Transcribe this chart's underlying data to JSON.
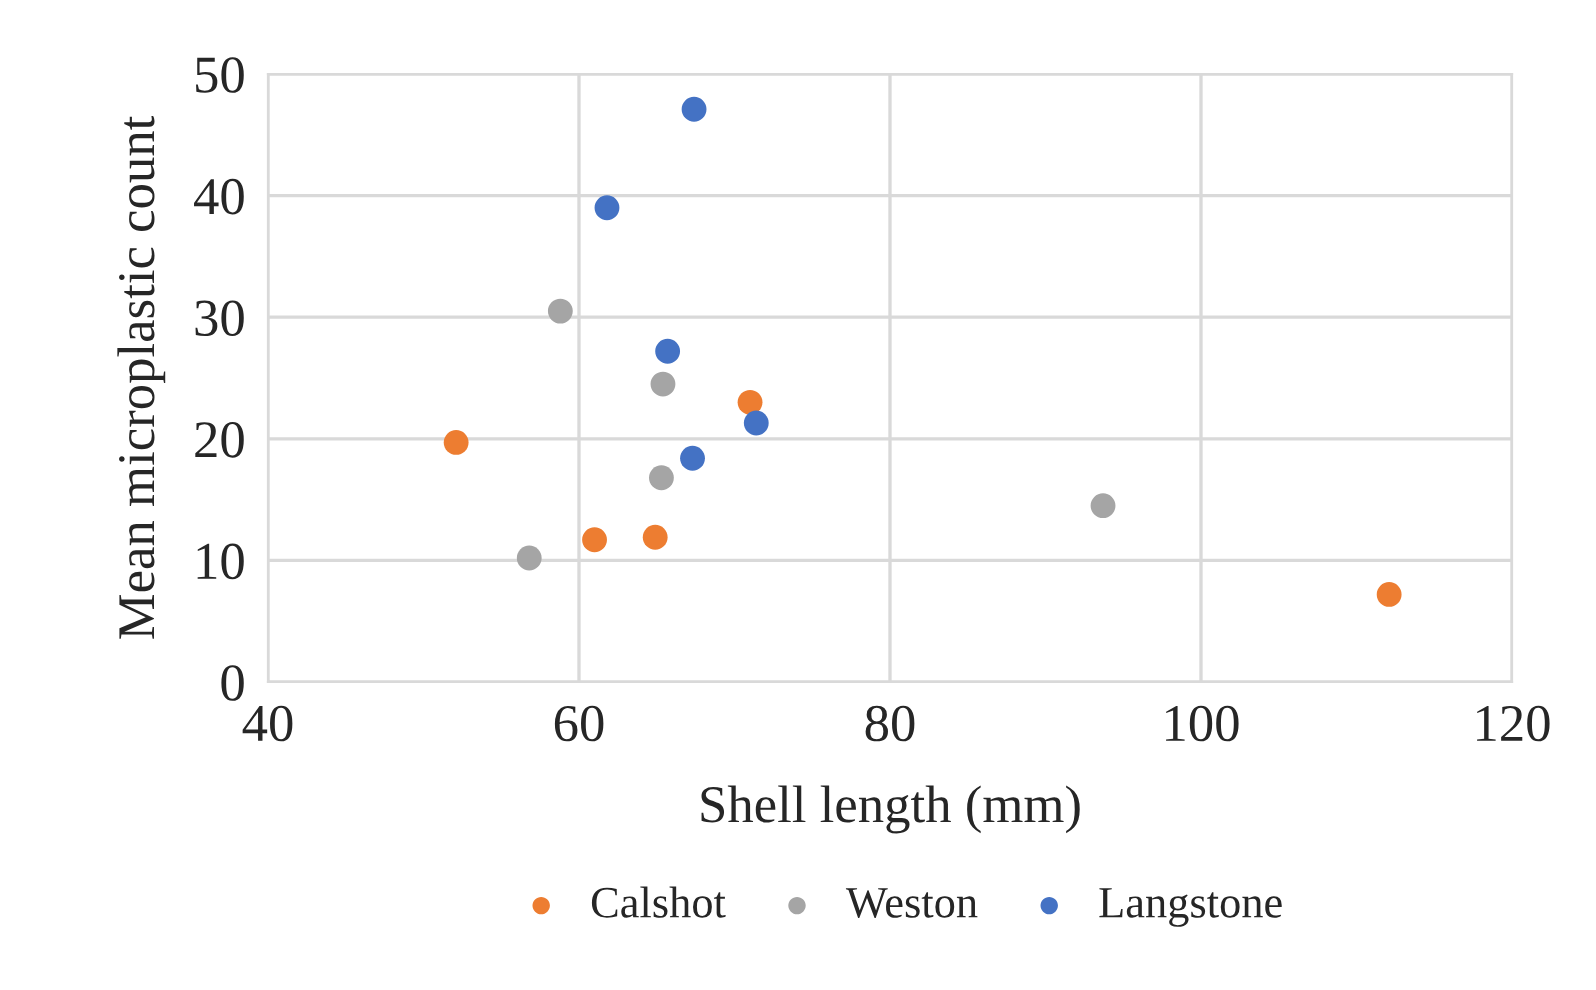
{
  "chart_data": {
    "type": "scatter",
    "xlabel": "Shell length (mm)",
    "ylabel": "Mean microplastic count",
    "xlim": [
      40,
      120
    ],
    "xticks": [
      40,
      60,
      80,
      100,
      120
    ],
    "ylim": [
      0,
      50
    ],
    "yticks": [
      0,
      10,
      20,
      30,
      40,
      50
    ],
    "grid": true,
    "legend": "bottom",
    "marker": "circle",
    "series": [
      {
        "name": "Calshot",
        "color": "#ed7d31",
        "x": [
          52.1,
          61,
          64.9,
          71,
          112.1
        ],
        "values": [
          19.7,
          11.7,
          11.9,
          23,
          7.2
        ]
      },
      {
        "name": "Weston",
        "color": "#a5a5a5",
        "x": [
          58.8,
          65.4,
          65.3,
          56.8,
          93.7
        ],
        "values": [
          30.5,
          24.5,
          16.8,
          10.2,
          14.5
        ]
      },
      {
        "name": "Langstone",
        "color": "#4472c4",
        "x": [
          67.4,
          61.8,
          65.7,
          71.4,
          67.3
        ],
        "values": [
          47.1,
          39,
          27.2,
          21.3,
          18.4
        ]
      }
    ]
  }
}
